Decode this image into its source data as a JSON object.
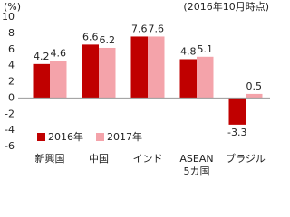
{
  "chart_data": {
    "type": "bar",
    "unit_label": "(%)",
    "note": "(2016年10月時点)",
    "categories": [
      "新興国",
      "中国",
      "インド",
      "ASEAN\n5カ国",
      "ブラジル"
    ],
    "series": [
      {
        "name": "2016年",
        "color": "#c00000",
        "values": [
          4.2,
          6.6,
          7.6,
          4.8,
          -3.3
        ]
      },
      {
        "name": "2017年",
        "color": "#f4a3aa",
        "values": [
          4.6,
          6.2,
          7.6,
          5.1,
          0.5
        ]
      }
    ],
    "negative_label_color": "#c00000",
    "ylim": [
      -6,
      10
    ],
    "yticks": [
      -6,
      -4,
      -2,
      0,
      2,
      4,
      6,
      8,
      10
    ],
    "grid": false,
    "legend": "bottom-left"
  }
}
